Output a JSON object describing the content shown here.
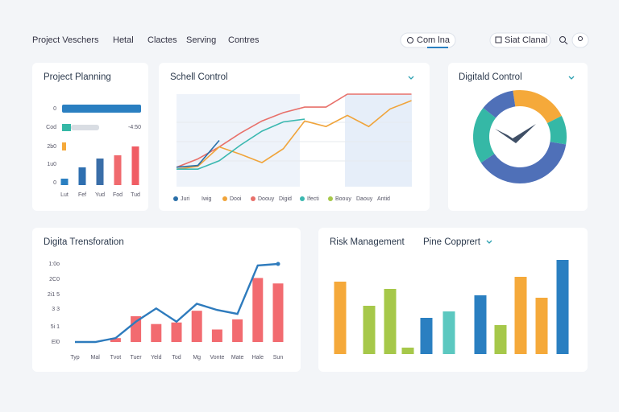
{
  "nav": {
    "items": [
      "Project Veschers",
      "Hetal",
      "Clactes",
      "Serving",
      "Contres"
    ],
    "tab": "Com lna",
    "button": "Siat Clanal"
  },
  "planning": {
    "title": "Project Planning",
    "row_labels": [
      "0",
      "Cod",
      "2b0",
      "1u0",
      "0"
    ],
    "row_value": "-4:50",
    "categories": [
      "Lut",
      "Fef",
      "Yud",
      "Fod",
      "Tud"
    ],
    "values": [
      8,
      22,
      33,
      37,
      48
    ],
    "colors": [
      "#2a7fc1",
      "#2e6fb0",
      "#3a6ea8",
      "#f06a6e",
      "#f05d64"
    ]
  },
  "schedule": {
    "title": "Schell Control",
    "series": [
      {
        "color": "#e8706a",
        "values": [
          21,
          30,
          43,
          58,
          71,
          80,
          86,
          86,
          100,
          100,
          100,
          100
        ]
      },
      {
        "color": "#f0a43a",
        "values": [
          19,
          22,
          43,
          35,
          26,
          41,
          71,
          65,
          77,
          65,
          84,
          93
        ]
      },
      {
        "color": "#3bb8b0",
        "values": [
          19,
          19,
          28,
          45,
          60,
          70,
          73,
          null,
          null,
          null,
          null,
          null
        ]
      },
      {
        "color": "#2a6fa8",
        "values": [
          21,
          23,
          50,
          null,
          null,
          null,
          null,
          null,
          null,
          null,
          null,
          null
        ]
      }
    ],
    "legend": [
      {
        "name": "Juri",
        "color": "#2a6fa8"
      },
      {
        "name": "Iwig",
        "color": null
      },
      {
        "name": "Dooi",
        "color": "#f0a43a"
      },
      {
        "name": "Doouy",
        "color": "#e8706a"
      },
      {
        "name": "Digid",
        "color": null
      },
      {
        "name": "Ifecti",
        "color": "#3bb8b0"
      },
      {
        "name": "Boouy",
        "color": "#a6c84a"
      },
      {
        "name": "Daouy",
        "color": null
      },
      {
        "name": "Antid",
        "color": null
      }
    ]
  },
  "digital_control": {
    "title": "Digitald Control",
    "values": [
      20,
      10,
      38,
      20,
      12
    ],
    "colors": [
      "#f5a93a",
      "#35b8a6",
      "#4f70b8",
      "#35b8a6",
      "#4f70b8"
    ]
  },
  "transformation": {
    "title": "Digita Trensforation",
    "y_labels": [
      "1:0o",
      "2C0",
      "2i1 5",
      "3 3",
      "5i 1",
      "El0"
    ],
    "categories": [
      "Typ",
      "Mal",
      "Tvot",
      "Tuer",
      "Yeld",
      "Tod",
      "Mg",
      "Vonte",
      "Mate",
      "Hale",
      "Sun"
    ],
    "line": [
      0,
      0,
      5,
      26,
      43,
      26,
      49,
      41,
      36,
      98,
      100
    ],
    "bars": [
      null,
      null,
      5,
      33,
      23,
      25,
      40,
      16,
      29,
      82,
      75
    ]
  },
  "risk": {
    "title": "Risk Management",
    "subtitle": "Pine Copprert",
    "values": [
      90,
      60,
      81,
      8,
      45,
      53,
      73,
      36,
      96,
      70,
      117
    ],
    "colors": [
      "#f5a93a",
      "#a6c84a",
      "#a6c84a",
      "#a6c84a",
      "#2a7fc1",
      "#5cc8c0",
      "#2a7fc1",
      "#a6c84a",
      "#f5a93a",
      "#f5a93a",
      "#2a7fc1"
    ]
  }
}
